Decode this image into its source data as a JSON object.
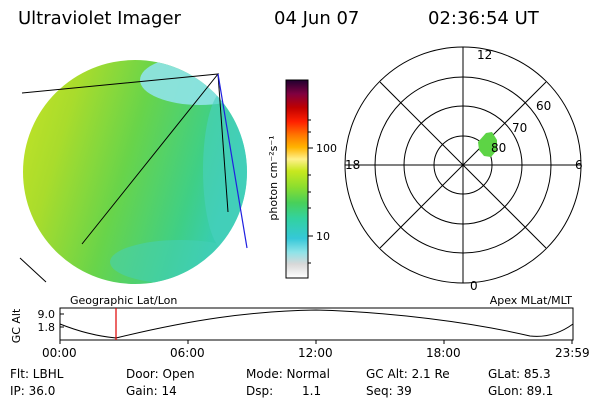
{
  "header": {
    "instrument": "Ultraviolet Imager",
    "date": "04 Jun 07",
    "time": "02:36:54 UT"
  },
  "colorbar": {
    "label": "photon cm⁻²s⁻¹",
    "ticks": [
      "100",
      "10"
    ],
    "colors": [
      "#ffffff",
      "#d8d8d8",
      "#8fe3e8",
      "#35c8d8",
      "#32d2a0",
      "#48d05a",
      "#8cde2e",
      "#c8e81e",
      "#fff08a",
      "#ffb400",
      "#ff7800",
      "#ff2000",
      "#c00000",
      "#800040",
      "#200030"
    ]
  },
  "polar": {
    "mlt_labels": {
      "top": "12",
      "right": "6",
      "bottom": "0",
      "left": "18"
    },
    "lat_labels": [
      "60",
      "70",
      "80"
    ]
  },
  "timeline": {
    "left_label": "Geographic Lat/Lon",
    "right_label": "Apex MLat/MLT",
    "ylabel": "GC Alt",
    "yticks": [
      "9.0",
      "1.8"
    ],
    "xticks": [
      "00:00",
      "06:00",
      "12:00",
      "18:00",
      "23:59"
    ],
    "marker_color": "#e00000"
  },
  "status": {
    "filter": "Flt: LBHL",
    "ip": "IP: 36.0",
    "door": "Door: Open",
    "gain": "Gain: 14",
    "mode": "Mode: Normal",
    "dsp_label": "Dsp:",
    "dsp_value": "1.1",
    "gc_alt": "GC Alt: 2.1 Re",
    "seq": "Seq: 39",
    "glat": "GLat:  85.3",
    "glon": "GLon:  89.1"
  }
}
